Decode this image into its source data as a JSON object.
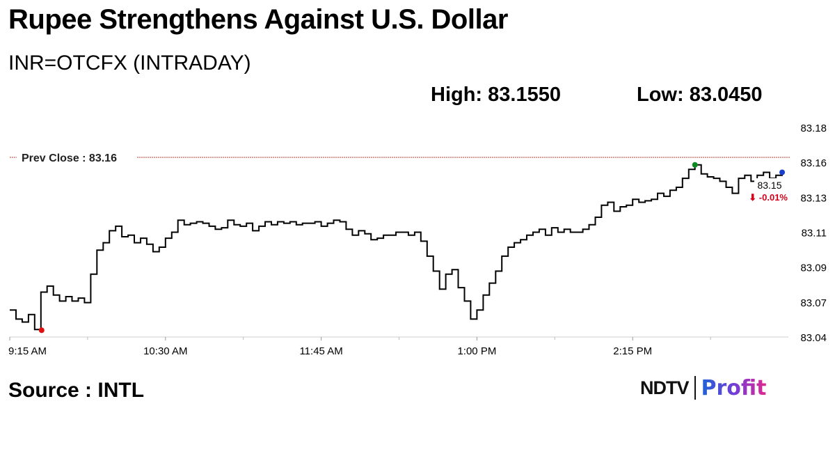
{
  "header": {
    "title": "Rupee Strengthens Against U.S. Dollar",
    "subtitle": "INR=OTCFX (INTRADAY)",
    "high_label": "High: 83.1550",
    "low_label": "Low: 83.0450"
  },
  "footer": {
    "source": "Source : INTL",
    "logo_brand": "NDTV",
    "logo_product": "Profit"
  },
  "colors": {
    "line": "#000000",
    "prev_close_line": "#c0392b",
    "low_marker": "#e01010",
    "high_marker": "#0b8a1e",
    "last_marker": "#1a3fc8",
    "change_negative": "#d0021b",
    "gridline": "#cccccc"
  },
  "chart_data": {
    "type": "line",
    "xlabel": "",
    "ylabel": "",
    "x_ticks": [
      "9:15 AM",
      "10:30 AM",
      "11:45 AM",
      "1:00 PM",
      "2:15 PM"
    ],
    "y_ticks": [
      "83.18",
      "83.16",
      "83.13",
      "83.11",
      "83.09",
      "83.07",
      "83.04"
    ],
    "ylim": [
      83.04,
      83.18
    ],
    "prev_close_label": "Prev Close : 83.16",
    "prev_close": 83.16,
    "last_value_label": "83.15",
    "change_label": "-0.01%",
    "change_direction": "down",
    "high": 83.155,
    "low": 83.045,
    "series": [
      {
        "x_minutes": [
          0,
          3,
          6,
          9,
          12,
          15,
          18,
          21,
          24,
          27,
          30,
          33,
          36,
          39,
          42,
          45,
          48,
          51,
          54,
          57,
          60,
          63,
          66,
          69,
          72,
          75,
          78,
          81,
          84,
          87,
          90,
          93,
          96,
          99,
          102,
          105,
          108,
          111,
          114,
          117,
          120,
          123,
          126,
          129,
          132,
          135,
          138,
          141,
          144,
          147,
          150,
          153,
          156,
          159,
          162,
          165,
          168,
          171,
          174,
          177,
          180,
          183,
          186,
          189,
          192,
          195,
          198,
          201,
          204,
          207,
          210,
          213,
          216,
          219,
          222,
          225,
          228,
          231,
          234,
          237,
          240,
          243,
          246,
          249,
          252,
          255,
          258,
          261,
          264,
          267,
          270,
          273,
          276,
          279,
          282,
          285,
          288,
          291,
          294,
          297,
          300,
          303,
          306,
          309,
          312,
          315,
          318,
          321,
          324,
          327,
          330,
          333,
          336,
          339,
          342,
          345,
          348,
          351,
          354,
          357,
          360,
          363,
          366,
          369,
          372
        ],
        "values": [
          83.058,
          83.052,
          83.05,
          83.055,
          83.045,
          83.07,
          83.074,
          83.068,
          83.064,
          83.067,
          83.064,
          83.066,
          83.063,
          83.082,
          83.098,
          83.103,
          83.111,
          83.114,
          83.107,
          83.108,
          83.103,
          83.106,
          83.102,
          83.097,
          83.1,
          83.106,
          83.11,
          83.118,
          83.115,
          83.116,
          83.117,
          83.116,
          83.114,
          83.112,
          83.113,
          83.118,
          83.115,
          83.114,
          83.116,
          83.111,
          83.114,
          83.117,
          83.115,
          83.117,
          83.116,
          83.117,
          83.115,
          83.116,
          83.116,
          83.117,
          83.114,
          83.116,
          83.118,
          83.117,
          83.112,
          83.108,
          83.111,
          83.109,
          83.105,
          83.106,
          83.108,
          83.108,
          83.11,
          83.11,
          83.108,
          83.11,
          83.104,
          83.094,
          83.084,
          83.072,
          83.082,
          83.085,
          83.073,
          83.064,
          83.052,
          83.058,
          83.068,
          83.076,
          83.084,
          83.094,
          83.1,
          83.103,
          83.105,
          83.108,
          83.11,
          83.112,
          83.108,
          83.113,
          83.11,
          83.112,
          83.11,
          83.11,
          83.112,
          83.115,
          83.12,
          83.128,
          83.13,
          83.124,
          83.127,
          83.128,
          83.132,
          83.13,
          83.131,
          83.132,
          83.136,
          83.134,
          83.138,
          83.14,
          83.146,
          83.152,
          83.155,
          83.149,
          83.147,
          83.146,
          83.144,
          83.14,
          83.136,
          83.146,
          83.148,
          83.144,
          83.148,
          83.15,
          83.146,
          83.148,
          83.15
        ]
      }
    ]
  }
}
